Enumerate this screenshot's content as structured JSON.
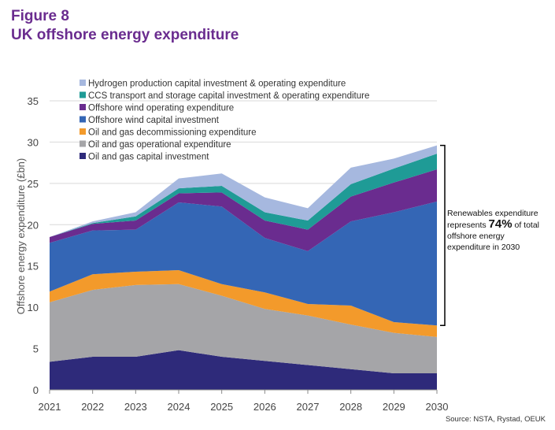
{
  "figure": {
    "label": "Figure 8",
    "title": "UK offshore energy expenditure"
  },
  "source": "Source: NSTA, Rystad, OEUK",
  "annotation": {
    "line1": "Renewables expenditure",
    "line2_pre": "represents ",
    "line2_pct": "74%",
    "line2_post": " of total",
    "line3": "offshore energy",
    "line4": "expenditure in 2030"
  },
  "chart_data": {
    "type": "area",
    "stacked": true,
    "ylabel": "Offshore energy expenditure (£bn)",
    "xlabel": "",
    "ylim": [
      0,
      35
    ],
    "yticks": [
      0,
      5,
      10,
      15,
      20,
      25,
      30,
      35
    ],
    "x": [
      "2021",
      "2022",
      "2023",
      "2024",
      "2025",
      "2026",
      "2027",
      "2028",
      "2029",
      "2030"
    ],
    "grid": true,
    "legend_position": "top",
    "series": [
      {
        "name": "Oil and gas capital investment",
        "color": "#2e2a7a",
        "values": [
          3.4,
          4.0,
          4.0,
          4.8,
          4.0,
          3.5,
          3.0,
          2.5,
          2.0,
          2.0
        ]
      },
      {
        "name": "Oil and gas operational expenditure",
        "color": "#a5a5a8",
        "values": [
          7.2,
          8.1,
          8.7,
          8.0,
          7.4,
          6.3,
          6.0,
          5.4,
          4.9,
          4.4
        ]
      },
      {
        "name": "Oil and gas decommissioning expenditure",
        "color": "#f39a2b",
        "values": [
          1.3,
          1.9,
          1.6,
          1.7,
          1.4,
          2.0,
          1.4,
          2.3,
          1.3,
          1.4
        ]
      },
      {
        "name": "Offshore wind capital investment",
        "color": "#3466b5",
        "values": [
          5.9,
          5.3,
          5.1,
          8.2,
          9.4,
          6.6,
          6.4,
          10.2,
          13.3,
          15.0
        ]
      },
      {
        "name": "Offshore wind operating expenditure",
        "color": "#6a2c8f",
        "values": [
          0.7,
          0.8,
          1.1,
          1.1,
          1.7,
          2.1,
          2.6,
          3.0,
          3.6,
          3.9
        ]
      },
      {
        "name": "CCS transport and storage capital investment & operating expenditure",
        "color": "#1f9b96",
        "values": [
          0.0,
          0.1,
          0.5,
          0.6,
          0.8,
          1.0,
          1.1,
          1.5,
          1.7,
          1.9
        ]
      },
      {
        "name": "Hydrogen production capital investment & operating expenditure",
        "color": "#a6b8df",
        "values": [
          0.0,
          0.2,
          0.5,
          1.2,
          1.5,
          1.8,
          1.5,
          2.0,
          1.2,
          1.0
        ]
      }
    ]
  }
}
